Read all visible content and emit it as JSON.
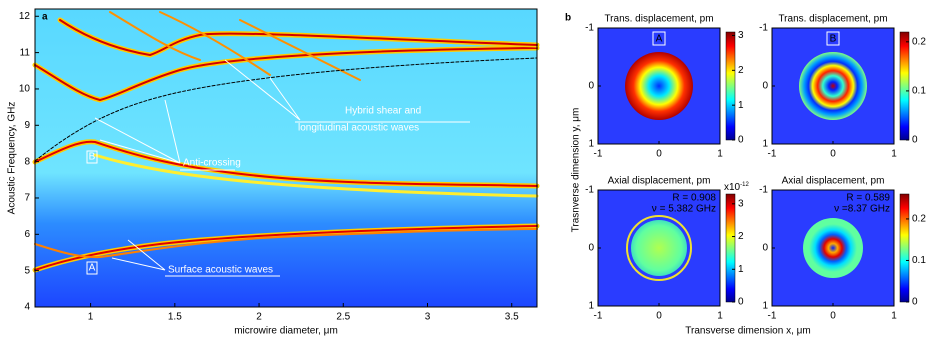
{
  "chart_data": [
    {
      "type": "heatmap",
      "panel_label": "a",
      "x_label": "microwire diameter, μm",
      "y_label": "Acoustic Frequency, GHz",
      "xlim": [
        0.67,
        3.65
      ],
      "ylim": [
        4,
        12.2
      ],
      "xticks": [
        1,
        1.5,
        2,
        2.5,
        3,
        3.5
      ],
      "yticks": [
        4,
        5,
        6,
        7,
        8,
        9,
        10,
        11,
        12
      ],
      "annotations": [
        "Hybrid shear and",
        "longitudinal acoustic waves",
        "Anti-crossing",
        "Surface acoustic waves"
      ],
      "mode_labels": [
        "A",
        "B"
      ]
    },
    {
      "type": "field-maps",
      "panel_label": "b",
      "x_label": "Transverse dimension x, μm",
      "y_label": "Trasnverse dimension y, μm",
      "xlim": [
        -1,
        1
      ],
      "ylim": [
        -1,
        1
      ],
      "xticks": [
        -1,
        0,
        1
      ],
      "yticks": [
        -1,
        0,
        1
      ],
      "maps": [
        {
          "title": "Trans. displacement, pm",
          "mode": "A",
          "clim": [
            0,
            3.1
          ],
          "cticks": [
            0,
            1,
            2,
            3
          ]
        },
        {
          "title": "Trans. displacement, pm",
          "mode": "B",
          "clim": [
            0,
            0.22
          ],
          "cticks": [
            0,
            0.1,
            0.2
          ]
        },
        {
          "title": "Axial displacement, pm",
          "notes": [
            "R = 0.908",
            "ν = 5.382 GHz"
          ],
          "scale": "x10",
          "scale_exp": "-12",
          "clim": [
            0,
            3.3
          ],
          "cticks": [
            0,
            1,
            2,
            3
          ]
        },
        {
          "title": "Axial displacement, pm",
          "notes": [
            "R = 0.589",
            "ν =8.37 GHz"
          ],
          "clim": [
            0,
            0.26
          ],
          "cticks": [
            0,
            0.1,
            0.2
          ]
        }
      ]
    }
  ]
}
